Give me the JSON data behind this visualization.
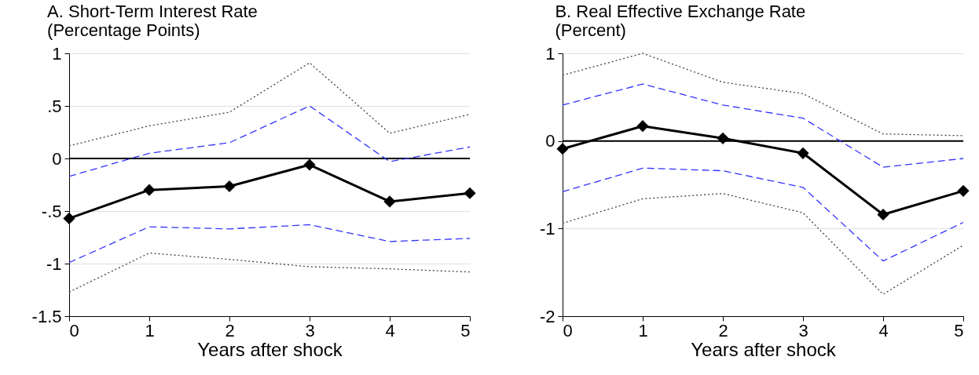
{
  "chart_data": [
    {
      "type": "line",
      "title": "A.   Short-Term Interest Rate",
      "subtitle": "(Percentage Points)",
      "xlabel": "Years after shock",
      "x": [
        0,
        1,
        2,
        3,
        4,
        5
      ],
      "xlim": [
        0,
        5
      ],
      "xticks": [
        0,
        1,
        2,
        3,
        4,
        5
      ],
      "ylim": [
        -1.5,
        1
      ],
      "yticks": [
        {
          "value": -1.5,
          "label": "-1.5"
        },
        -1,
        {
          "value": -0.5,
          "label": "-.5"
        },
        0,
        {
          "value": 0.5,
          "label": ".5"
        },
        1
      ],
      "grid": "y",
      "ref_lines": [
        {
          "axis": "y",
          "value": 0,
          "color": "#000000"
        }
      ],
      "series": [
        {
          "color": "#000000",
          "line_style": "solid",
          "marker": "diamond",
          "values": [
            -0.57,
            -0.3,
            -0.265,
            -0.06,
            -0.41,
            -0.33
          ]
        },
        {
          "color": "#3333ff",
          "line_style": "dashed",
          "marker": "none",
          "values": [
            -0.17,
            0.05,
            0.15,
            0.5,
            -0.03,
            0.11
          ]
        },
        {
          "color": "#3333ff",
          "line_style": "dashed",
          "marker": "none",
          "values": [
            -0.99,
            -0.65,
            -0.67,
            -0.63,
            -0.79,
            -0.76
          ]
        },
        {
          "color": "#404040",
          "line_style": "dotted",
          "marker": "none",
          "values": [
            0.12,
            0.31,
            0.44,
            0.91,
            0.24,
            0.42
          ]
        },
        {
          "color": "#404040",
          "line_style": "dotted",
          "marker": "none",
          "values": [
            -1.27,
            -0.9,
            -0.96,
            -1.03,
            -1.05,
            -1.08
          ]
        }
      ]
    },
    {
      "type": "line",
      "title": "B.   Real Effective Exchange Rate",
      "subtitle": "(Percent)",
      "xlabel": "Years after shock",
      "x": [
        0,
        1,
        2,
        3,
        4,
        5
      ],
      "xlim": [
        0,
        5
      ],
      "xticks": [
        0,
        1,
        2,
        3,
        4,
        5
      ],
      "ylim": [
        -2,
        1
      ],
      "yticks": [
        -2,
        -1,
        0,
        1
      ],
      "grid": "y",
      "ref_lines": [
        {
          "axis": "y",
          "value": 0,
          "color": "#000000"
        }
      ],
      "series": [
        {
          "color": "#000000",
          "line_style": "solid",
          "marker": "diamond",
          "values": [
            -0.09,
            0.17,
            0.03,
            -0.14,
            -0.84,
            -0.57
          ]
        },
        {
          "color": "#3333ff",
          "line_style": "dashed",
          "marker": "none",
          "values": [
            0.41,
            0.65,
            0.41,
            0.26,
            -0.3,
            -0.2
          ]
        },
        {
          "color": "#3333ff",
          "line_style": "dashed",
          "marker": "none",
          "values": [
            -0.58,
            -0.31,
            -0.34,
            -0.53,
            -1.37,
            -0.93
          ]
        },
        {
          "color": "#404040",
          "line_style": "dotted",
          "marker": "none",
          "values": [
            0.75,
            1.0,
            0.67,
            0.54,
            0.08,
            0.06
          ]
        },
        {
          "color": "#404040",
          "line_style": "dotted",
          "marker": "none",
          "values": [
            -0.94,
            -0.66,
            -0.6,
            -0.82,
            -1.75,
            -1.19
          ]
        }
      ]
    }
  ]
}
